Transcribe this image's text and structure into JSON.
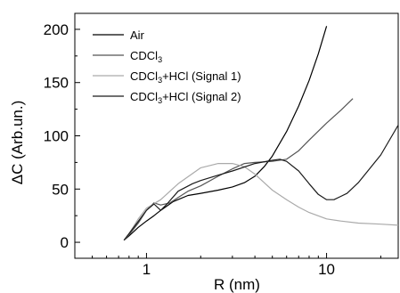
{
  "chart_data": {
    "type": "line",
    "title": "",
    "xlabel": "R (nm)",
    "ylabel": "ΔC (Arb.un.)",
    "xscale": "log",
    "xlim": [
      0.4,
      25
    ],
    "ylim": [
      -15,
      215
    ],
    "xticks": [
      {
        "value": 1,
        "label": "1"
      },
      {
        "value": 10,
        "label": "10"
      }
    ],
    "yticks": [
      {
        "value": 0,
        "label": "0"
      },
      {
        "value": 50,
        "label": "50"
      },
      {
        "value": 100,
        "label": "100"
      },
      {
        "value": 150,
        "label": "150"
      },
      {
        "value": 200,
        "label": "200"
      }
    ],
    "legend_position": "top-left",
    "grid": false,
    "series": [
      {
        "name": "Air",
        "legend_label": {
          "main": "Air",
          "sub": "",
          "rest": ""
        },
        "color": "#000000",
        "x": [
          0.75,
          0.8,
          0.9,
          1.0,
          1.1,
          1.2,
          1.4,
          1.7,
          2.0,
          2.5,
          3.0,
          3.5,
          4.0,
          4.5,
          5.0,
          6.0,
          7.0,
          8.0,
          9.0,
          10.0
        ],
        "y": [
          2,
          6,
          14,
          20,
          25,
          30,
          38,
          44,
          46,
          49,
          52,
          56,
          62,
          71,
          81,
          104,
          128,
          152,
          177,
          203
        ]
      },
      {
        "name": "CDCl3",
        "legend_label": {
          "main": "CDCl",
          "sub": "3",
          "rest": ""
        },
        "color": "#555555",
        "x": [
          0.75,
          0.8,
          0.9,
          1.0,
          1.1,
          1.2,
          1.35,
          1.5,
          1.7,
          2.0,
          2.5,
          3.0,
          3.5,
          4.0,
          5.0,
          6.0,
          7.0,
          8.0,
          10.0,
          12.0,
          14.0
        ],
        "y": [
          2,
          7,
          18,
          30,
          37,
          35,
          37,
          42,
          48,
          53,
          62,
          69,
          74,
          75,
          76,
          78,
          86,
          96,
          112,
          124,
          135
        ]
      },
      {
        "name": "CDCl3+HCl (Signal 1)",
        "legend_label": {
          "main": "CDCl",
          "sub": "3",
          "rest": "+HCl (Signal 1)"
        },
        "color": "#aaaaaa",
        "x": [
          0.75,
          0.8,
          0.9,
          1.0,
          1.2,
          1.5,
          2.0,
          2.5,
          3.0,
          3.5,
          4.0,
          4.5,
          5.0,
          6.0,
          7.0,
          8.0,
          10.0,
          12.0,
          15.0,
          20.0,
          25.0
        ],
        "y": [
          2,
          8,
          22,
          32,
          40,
          55,
          70,
          74,
          74,
          71,
          64,
          56,
          49,
          40,
          33,
          28,
          22,
          20,
          18,
          17,
          16
        ]
      },
      {
        "name": "CDCl3+HCl (Signal 2)",
        "legend_label": {
          "main": "CDCl",
          "sub": "3",
          "rest": "+HCl (Signal 2)"
        },
        "color": "#1a1a1a",
        "x": [
          0.75,
          0.85,
          1.0,
          1.1,
          1.2,
          1.3,
          1.5,
          1.8,
          2.0,
          2.5,
          3.0,
          4.0,
          5.0,
          5.5,
          6.0,
          7.0,
          8.0,
          9.0,
          10.0,
          11.0,
          13.0,
          15.0,
          20.0,
          25.0
        ],
        "y": [
          2,
          14,
          30,
          36,
          30,
          36,
          48,
          55,
          58,
          63,
          67,
          74,
          77,
          78,
          76,
          67,
          55,
          45,
          40,
          40,
          46,
          56,
          82,
          110
        ]
      }
    ]
  }
}
